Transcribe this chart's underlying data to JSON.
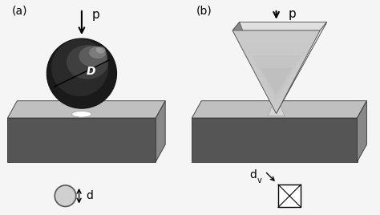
{
  "bg_color": "#f5f5f5",
  "label_a": "(a)",
  "label_b": "(b)",
  "label_P": "p",
  "label_D": "D",
  "label_d": "d",
  "label_dv": "d",
  "label_v_sub": "v",
  "block_top_color": "#c0c0c0",
  "block_front_color": "#555555",
  "block_side_color": "#888888",
  "sphere_base": "#1a1a1a",
  "sphere_highlight": "#888888",
  "sphere_highlight2": "#cccccc",
  "ind_top_color": "#d8d8d8",
  "ind_left_color": "#a0a0a0",
  "ind_right_color": "#e8e8e8",
  "ind_front_color": "#c0c0c0",
  "circle_fill": "#d0d0d0"
}
